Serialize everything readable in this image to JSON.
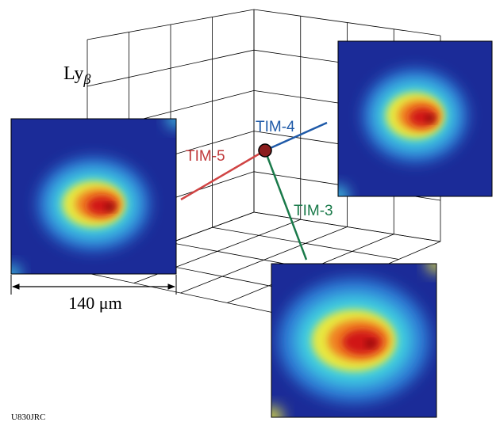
{
  "axis_label": {
    "text": "Ly",
    "subscript": "β"
  },
  "views": [
    {
      "label": "TIM-4"
    },
    {
      "label": "TIM-5"
    },
    {
      "label": "TIM-3"
    }
  ],
  "scale_bar": {
    "label": "140 μm"
  },
  "figure_id": "U830JRC"
}
